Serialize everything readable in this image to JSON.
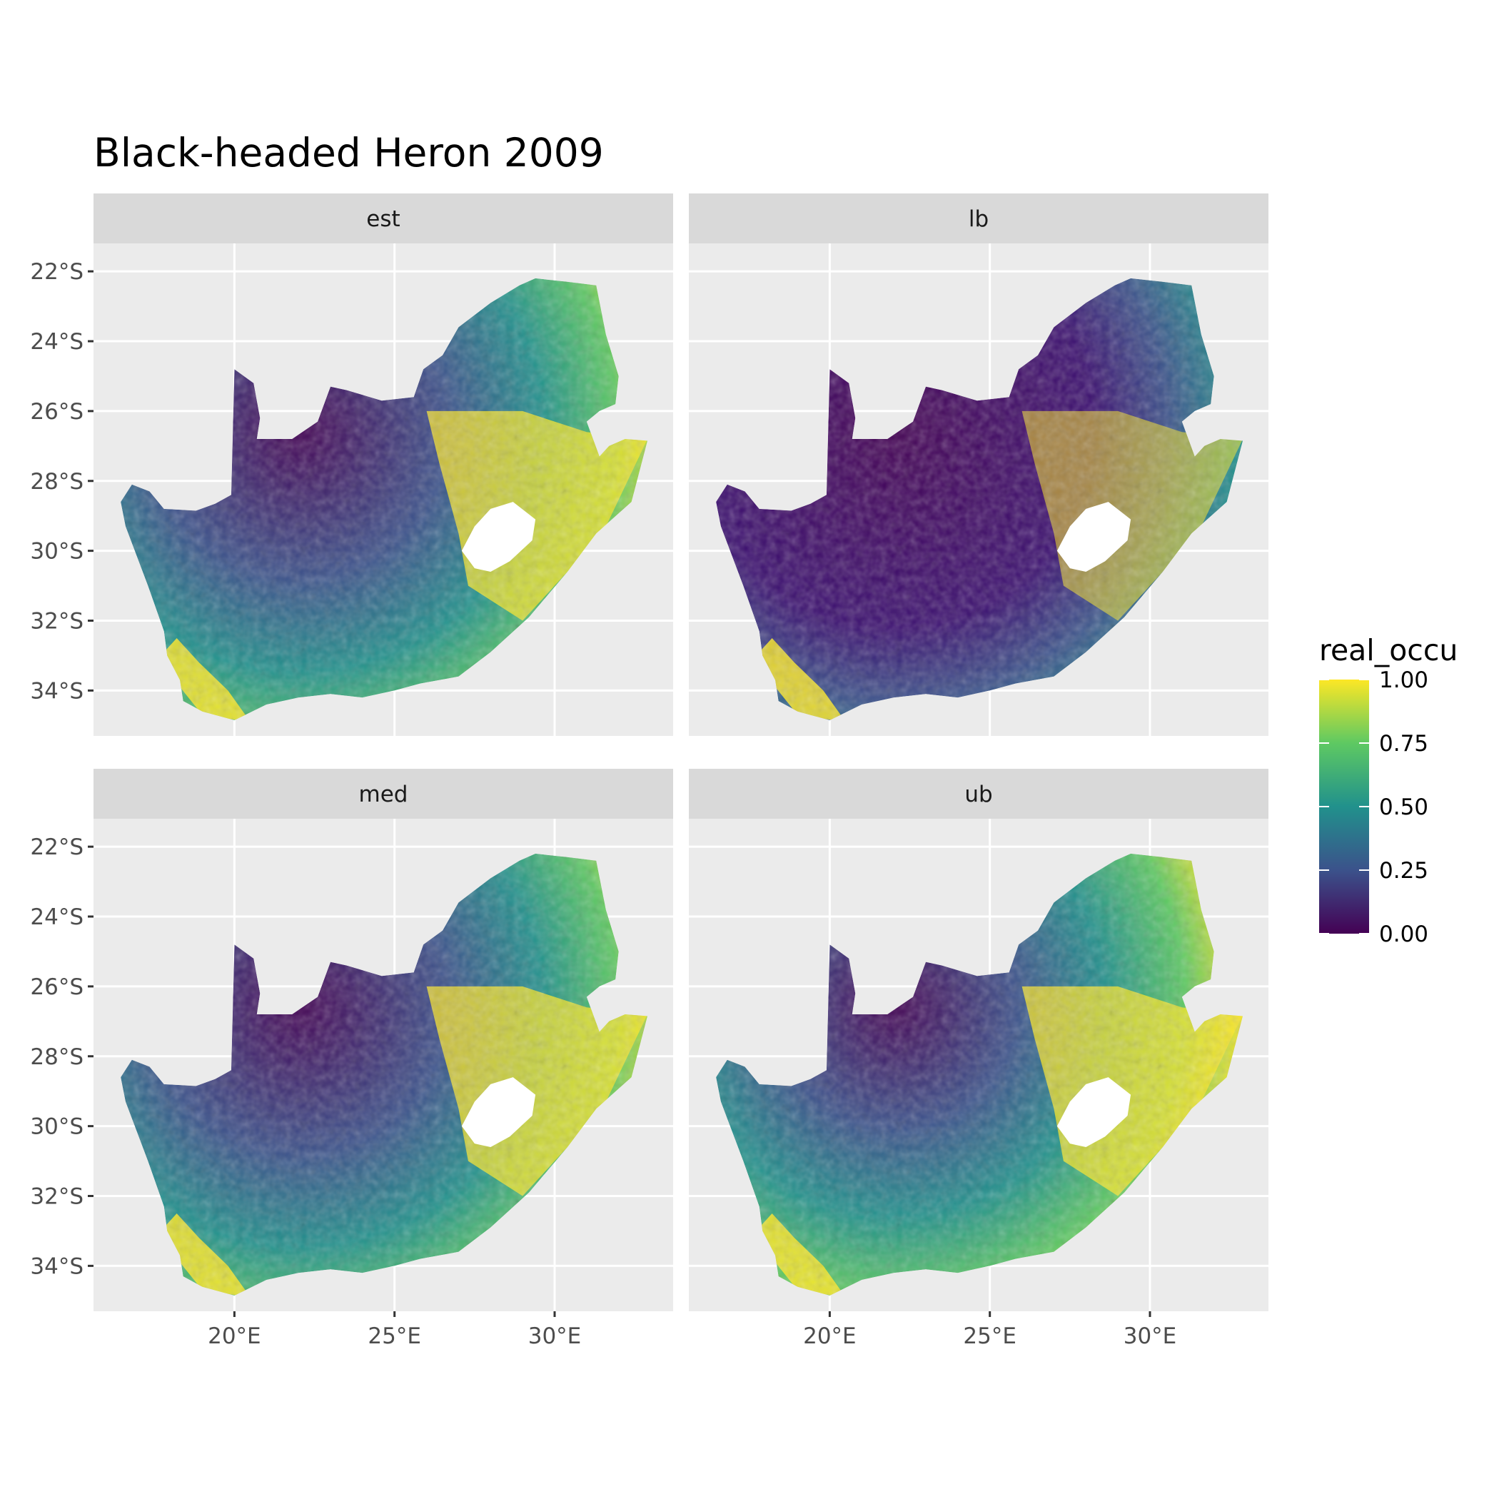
{
  "title": "Black-headed Heron 2009",
  "panels": [
    {
      "label": "est",
      "lon_offset": 0
    },
    {
      "label": "lb",
      "lon_offset": 0
    },
    {
      "label": "med",
      "lon_offset": 0
    },
    {
      "label": "ub",
      "lon_offset": 0
    }
  ],
  "map_extent": {
    "lon": [
      15.6,
      33.7
    ],
    "lat": [
      -35.3,
      -21.2
    ]
  },
  "x_ticks": [
    {
      "value": 20,
      "label": "20°E"
    },
    {
      "value": 25,
      "label": "25°E"
    },
    {
      "value": 30,
      "label": "30°E"
    }
  ],
  "y_ticks": [
    {
      "value": -22,
      "label": "22°S"
    },
    {
      "value": -24,
      "label": "24°S"
    },
    {
      "value": -26,
      "label": "26°S"
    },
    {
      "value": -28,
      "label": "28°S"
    },
    {
      "value": -30,
      "label": "30°S"
    },
    {
      "value": -32,
      "label": "32°S"
    },
    {
      "value": -34,
      "label": "34°S"
    }
  ],
  "legend": {
    "title": "real_occu",
    "breaks": [
      {
        "value": 1.0,
        "label": "1.00"
      },
      {
        "value": 0.75,
        "label": "0.75"
      },
      {
        "value": 0.5,
        "label": "0.50"
      },
      {
        "value": 0.25,
        "label": "0.25"
      },
      {
        "value": 0.0,
        "label": "0.00"
      }
    ],
    "colors": [
      "#440154",
      "#3b528b",
      "#21918c",
      "#5ec962",
      "#fde725"
    ]
  },
  "colors": {
    "panel_bg": "#ebebeb",
    "strip_bg": "#d9d9d9",
    "grid": "#ffffff",
    "lesotho": "#ffffff"
  }
}
